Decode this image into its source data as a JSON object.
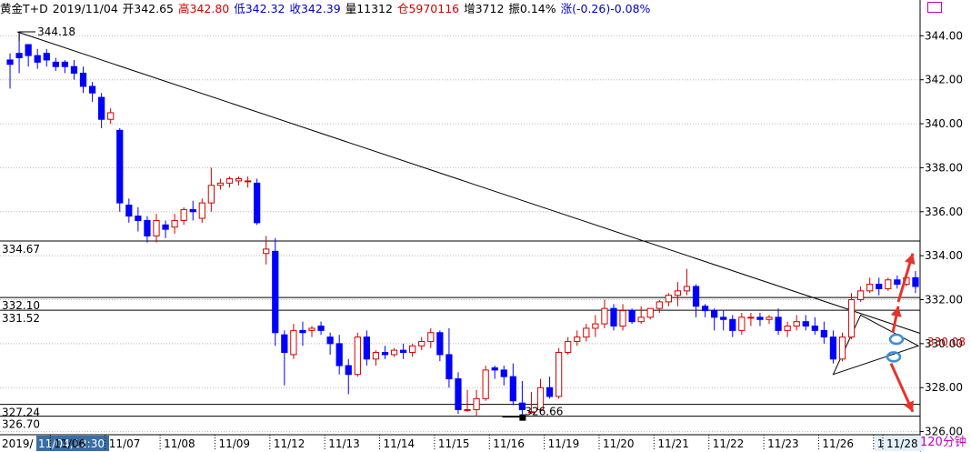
{
  "header": {
    "instrument": "黄金T+D",
    "date": "2019/11/04",
    "open": "开342.65",
    "high": "高342.80",
    "low": "低342.32",
    "close": "收342.39",
    "volume": "量11312",
    "position": "仓5970116",
    "increase": "增3712",
    "amplitude": "振0.14%",
    "change": "涨(-0.26)-0.08%"
  },
  "colors": {
    "up": "#d40000",
    "down": "#0000ff",
    "label_highlight": "#e3f1fc",
    "cursor_bg": "#3a6ea5",
    "arrow": "#e8322a",
    "ellipse": "#3b8fd6"
  },
  "interval_label": "120分钟",
  "chart_data": {
    "type": "candlestick",
    "interval": "120分钟",
    "y_range": [
      325.9,
      344.8
    ],
    "y_ticks": [
      326.0,
      328.0,
      330.0,
      332.0,
      334.0,
      336.0,
      338.0,
      340.0,
      342.0,
      344.0
    ],
    "y_tick_labels": [
      "326.00",
      "328.00",
      "330.00",
      "332.00",
      "334.00",
      "336.00",
      "338.00",
      "340.00",
      "342.00",
      "344.00"
    ],
    "x_labels": [
      "2019/",
      "11/04,12:30",
      "11/06",
      "11/07",
      "11/08",
      "11/09",
      "11/12",
      "11/13",
      "11/14",
      "11/15",
      "11/16",
      "11/19",
      "11/20",
      "11/21",
      "11/22",
      "11/23",
      "11/26",
      "11/27",
      "11/28"
    ],
    "x_label_index": [
      0,
      1,
      6,
      12,
      18,
      24,
      30,
      36,
      42,
      48,
      54,
      60,
      66,
      72,
      78,
      84,
      90,
      96,
      101
    ],
    "current_price": "330.08",
    "candles": [
      [
        342.9,
        343.2,
        342.7,
        341.6
      ],
      [
        343.2,
        344.1,
        343.0,
        342.3
      ],
      [
        343.6,
        343.6,
        343.1,
        342.6
      ],
      [
        343.1,
        343.4,
        342.8,
        342.5
      ],
      [
        343.2,
        343.4,
        342.9,
        342.6
      ],
      [
        342.8,
        343.0,
        342.6,
        342.4
      ],
      [
        342.8,
        342.9,
        342.6,
        342.3
      ],
      [
        342.6,
        342.9,
        342.3,
        342.0
      ],
      [
        342.3,
        342.6,
        341.7,
        341.4
      ],
      [
        341.7,
        341.9,
        341.4,
        341.0
      ],
      [
        341.2,
        341.4,
        340.2,
        339.8
      ],
      [
        340.2,
        340.7,
        340.5,
        340.0
      ],
      [
        339.7,
        339.8,
        336.4,
        336.0
      ],
      [
        336.3,
        336.6,
        335.8,
        335.5
      ],
      [
        335.8,
        336.2,
        335.6,
        335.1
      ],
      [
        335.6,
        335.8,
        334.9,
        334.6
      ],
      [
        334.9,
        335.9,
        335.6,
        334.6
      ],
      [
        335.4,
        335.6,
        335.2,
        334.8
      ],
      [
        335.3,
        335.9,
        335.6,
        335.0
      ],
      [
        335.6,
        336.2,
        336.1,
        335.4
      ],
      [
        336.1,
        336.5,
        336.0,
        335.6
      ],
      [
        335.7,
        336.6,
        336.4,
        335.5
      ],
      [
        336.4,
        338.0,
        337.2,
        336.0
      ],
      [
        337.2,
        337.5,
        337.3,
        337.0
      ],
      [
        337.3,
        337.6,
        337.5,
        337.1
      ],
      [
        337.4,
        337.6,
        337.5,
        337.2
      ],
      [
        337.4,
        337.6,
        337.4,
        337.1
      ],
      [
        337.3,
        337.5,
        335.5,
        335.4
      ],
      [
        334.1,
        334.9,
        334.3,
        333.6
      ],
      [
        334.2,
        334.8,
        330.5,
        329.9
      ],
      [
        330.4,
        330.6,
        329.6,
        328.1
      ],
      [
        329.5,
        330.9,
        330.6,
        329.3
      ],
      [
        330.6,
        331.0,
        330.5,
        329.9
      ],
      [
        330.6,
        330.8,
        330.7,
        330.3
      ],
      [
        330.8,
        331.0,
        330.6,
        330.4
      ],
      [
        330.3,
        330.5,
        330.0,
        329.5
      ],
      [
        330.0,
        330.4,
        329.0,
        328.6
      ],
      [
        329.0,
        329.3,
        328.6,
        327.7
      ],
      [
        328.6,
        330.5,
        330.3,
        328.5
      ],
      [
        330.3,
        330.6,
        329.3,
        329.0
      ],
      [
        329.3,
        329.7,
        329.6,
        329.0
      ],
      [
        329.6,
        329.9,
        329.5,
        329.3
      ],
      [
        329.5,
        329.8,
        329.7,
        329.4
      ],
      [
        329.7,
        330.0,
        329.6,
        329.3
      ],
      [
        329.6,
        330.0,
        329.9,
        329.4
      ],
      [
        329.9,
        330.3,
        330.1,
        329.7
      ],
      [
        330.1,
        330.7,
        330.5,
        329.8
      ],
      [
        330.5,
        330.6,
        329.5,
        329.2
      ],
      [
        329.5,
        330.7,
        328.4,
        328.0
      ],
      [
        328.4,
        328.7,
        327.0,
        326.8
      ],
      [
        327.0,
        327.9,
        327.0,
        326.9
      ],
      [
        327.0,
        327.9,
        327.5,
        326.7
      ],
      [
        327.5,
        329.0,
        328.8,
        327.4
      ],
      [
        328.9,
        329.0,
        328.8,
        328.4
      ],
      [
        328.8,
        329.0,
        328.5,
        328.1
      ],
      [
        328.5,
        329.1,
        327.4,
        327.2
      ],
      [
        327.3,
        328.3,
        327.0,
        326.7
      ],
      [
        326.9,
        327.8,
        326.9,
        326.8
      ],
      [
        327.0,
        328.4,
        328.0,
        326.9
      ],
      [
        328.0,
        328.5,
        327.6,
        327.5
      ],
      [
        327.6,
        329.8,
        329.6,
        327.5
      ],
      [
        329.6,
        330.3,
        330.1,
        329.5
      ],
      [
        330.1,
        330.6,
        330.3,
        329.9
      ],
      [
        330.3,
        330.9,
        330.7,
        330.1
      ],
      [
        330.7,
        331.3,
        330.9,
        330.3
      ],
      [
        330.9,
        332.0,
        331.6,
        330.7
      ],
      [
        331.6,
        331.8,
        330.8,
        330.6
      ],
      [
        330.8,
        331.8,
        331.5,
        330.6
      ],
      [
        331.5,
        331.6,
        331.0,
        330.9
      ],
      [
        331.0,
        331.7,
        331.2,
        330.9
      ],
      [
        331.2,
        331.6,
        331.6,
        331.1
      ],
      [
        331.6,
        332.0,
        331.9,
        331.4
      ],
      [
        331.9,
        332.3,
        332.2,
        331.7
      ],
      [
        332.2,
        332.8,
        332.4,
        331.7
      ],
      [
        332.4,
        333.4,
        332.6,
        332.2
      ],
      [
        332.6,
        332.7,
        331.7,
        331.2
      ],
      [
        331.7,
        331.8,
        331.5,
        331.2
      ],
      [
        331.5,
        331.6,
        331.2,
        330.6
      ],
      [
        331.2,
        331.5,
        331.1,
        330.6
      ],
      [
        331.1,
        331.3,
        330.6,
        330.3
      ],
      [
        330.6,
        331.4,
        331.2,
        330.4
      ],
      [
        331.2,
        331.4,
        331.2,
        330.8
      ],
      [
        331.2,
        331.4,
        331.1,
        330.8
      ],
      [
        331.1,
        331.3,
        331.2,
        330.9
      ],
      [
        331.2,
        331.6,
        330.6,
        330.4
      ],
      [
        330.6,
        331.0,
        330.8,
        330.3
      ],
      [
        330.8,
        331.3,
        331.0,
        330.6
      ],
      [
        331.0,
        331.3,
        330.8,
        330.6
      ],
      [
        330.8,
        331.2,
        330.6,
        330.4
      ],
      [
        330.6,
        331.0,
        330.3,
        330.0
      ],
      [
        330.3,
        330.6,
        329.3,
        329.1
      ],
      [
        329.3,
        330.5,
        330.3,
        329.2
      ],
      [
        330.3,
        332.3,
        332.0,
        330.2
      ],
      [
        332.0,
        332.6,
        332.4,
        331.9
      ],
      [
        332.4,
        333.0,
        332.7,
        332.3
      ],
      [
        332.7,
        333.0,
        332.5,
        332.2
      ],
      [
        332.5,
        333.0,
        332.9,
        332.4
      ],
      [
        332.9,
        333.1,
        332.7,
        332.5
      ],
      [
        332.7,
        333.2,
        333.0,
        332.6
      ],
      [
        333.0,
        333.3,
        332.6,
        332.3
      ]
    ],
    "horizontal_levels": [
      {
        "value": 334.67,
        "label": "334.67"
      },
      {
        "value": 332.1,
        "label": "332.10"
      },
      {
        "value": 331.52,
        "label": "331.52"
      },
      {
        "value": 327.24,
        "label": "327.24"
      },
      {
        "value": 326.7,
        "label": "326.70"
      }
    ],
    "annotations": [
      {
        "text": "344.18",
        "value": 344.18
      },
      {
        "text": "326.66",
        "value": 326.66
      }
    ],
    "trendline": {
      "from": [
        0,
        344.18
      ],
      "to": [
        101,
        330.8
      ]
    },
    "triangle": {
      "apex_left": [
        90,
        328.6
      ],
      "top": [
        93,
        331.3
      ],
      "right": [
        101,
        329.9
      ]
    }
  }
}
